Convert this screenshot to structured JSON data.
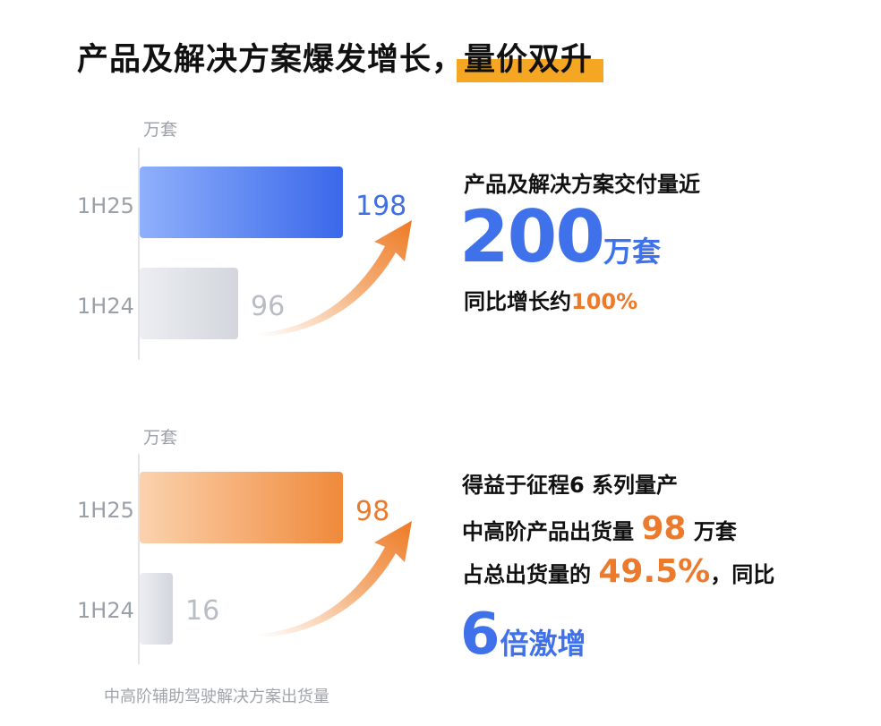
{
  "headline": {
    "main": "产品及解决方案爆发增长，",
    "highlight": "量价双升",
    "highlight_color": "#f5a623"
  },
  "chart_data": [
    {
      "type": "bar",
      "orientation": "horizontal",
      "unit": "万套",
      "categories": [
        "1H25",
        "1H24"
      ],
      "values": [
        198,
        96
      ],
      "value_labels": [
        "198",
        "96"
      ],
      "xlim": [
        0,
        198
      ],
      "colors": {
        "1H25": "#4a78ee",
        "1H24": "#d3d6dc",
        "label_1H25": "#3f6fe0",
        "label_1H24": "#b8bcc4"
      },
      "grid": false
    },
    {
      "type": "bar",
      "orientation": "horizontal",
      "unit": "万套",
      "categories": [
        "1H25",
        "1H24"
      ],
      "values": [
        98,
        16
      ],
      "value_labels": [
        "98",
        "16"
      ],
      "xlim": [
        0,
        98
      ],
      "colors": {
        "1H25": "#f08a3a",
        "1H24": "#d3d6dc",
        "label_1H25": "#ec7a2c",
        "label_1H24": "#b8bcc4"
      },
      "grid": false
    }
  ],
  "block1": {
    "line1": "产品及解决方案交付量近",
    "big_number": "200",
    "big_unit": "万套",
    "line3_prefix": "同比增长约",
    "line3_value": "100%"
  },
  "block2": {
    "line1": "得益于征程6 系列量产",
    "line2_prefix": "中高阶产品出货量",
    "line2_value": "98",
    "line2_suffix": "万套",
    "line3_prefix": "占总出货量的",
    "line3_value": "49.5%",
    "line3_suffix": "，同比",
    "line4_value": "6",
    "line4_suffix": "倍激增"
  },
  "footnote": "中高阶辅助驾驶解决方案出货量"
}
